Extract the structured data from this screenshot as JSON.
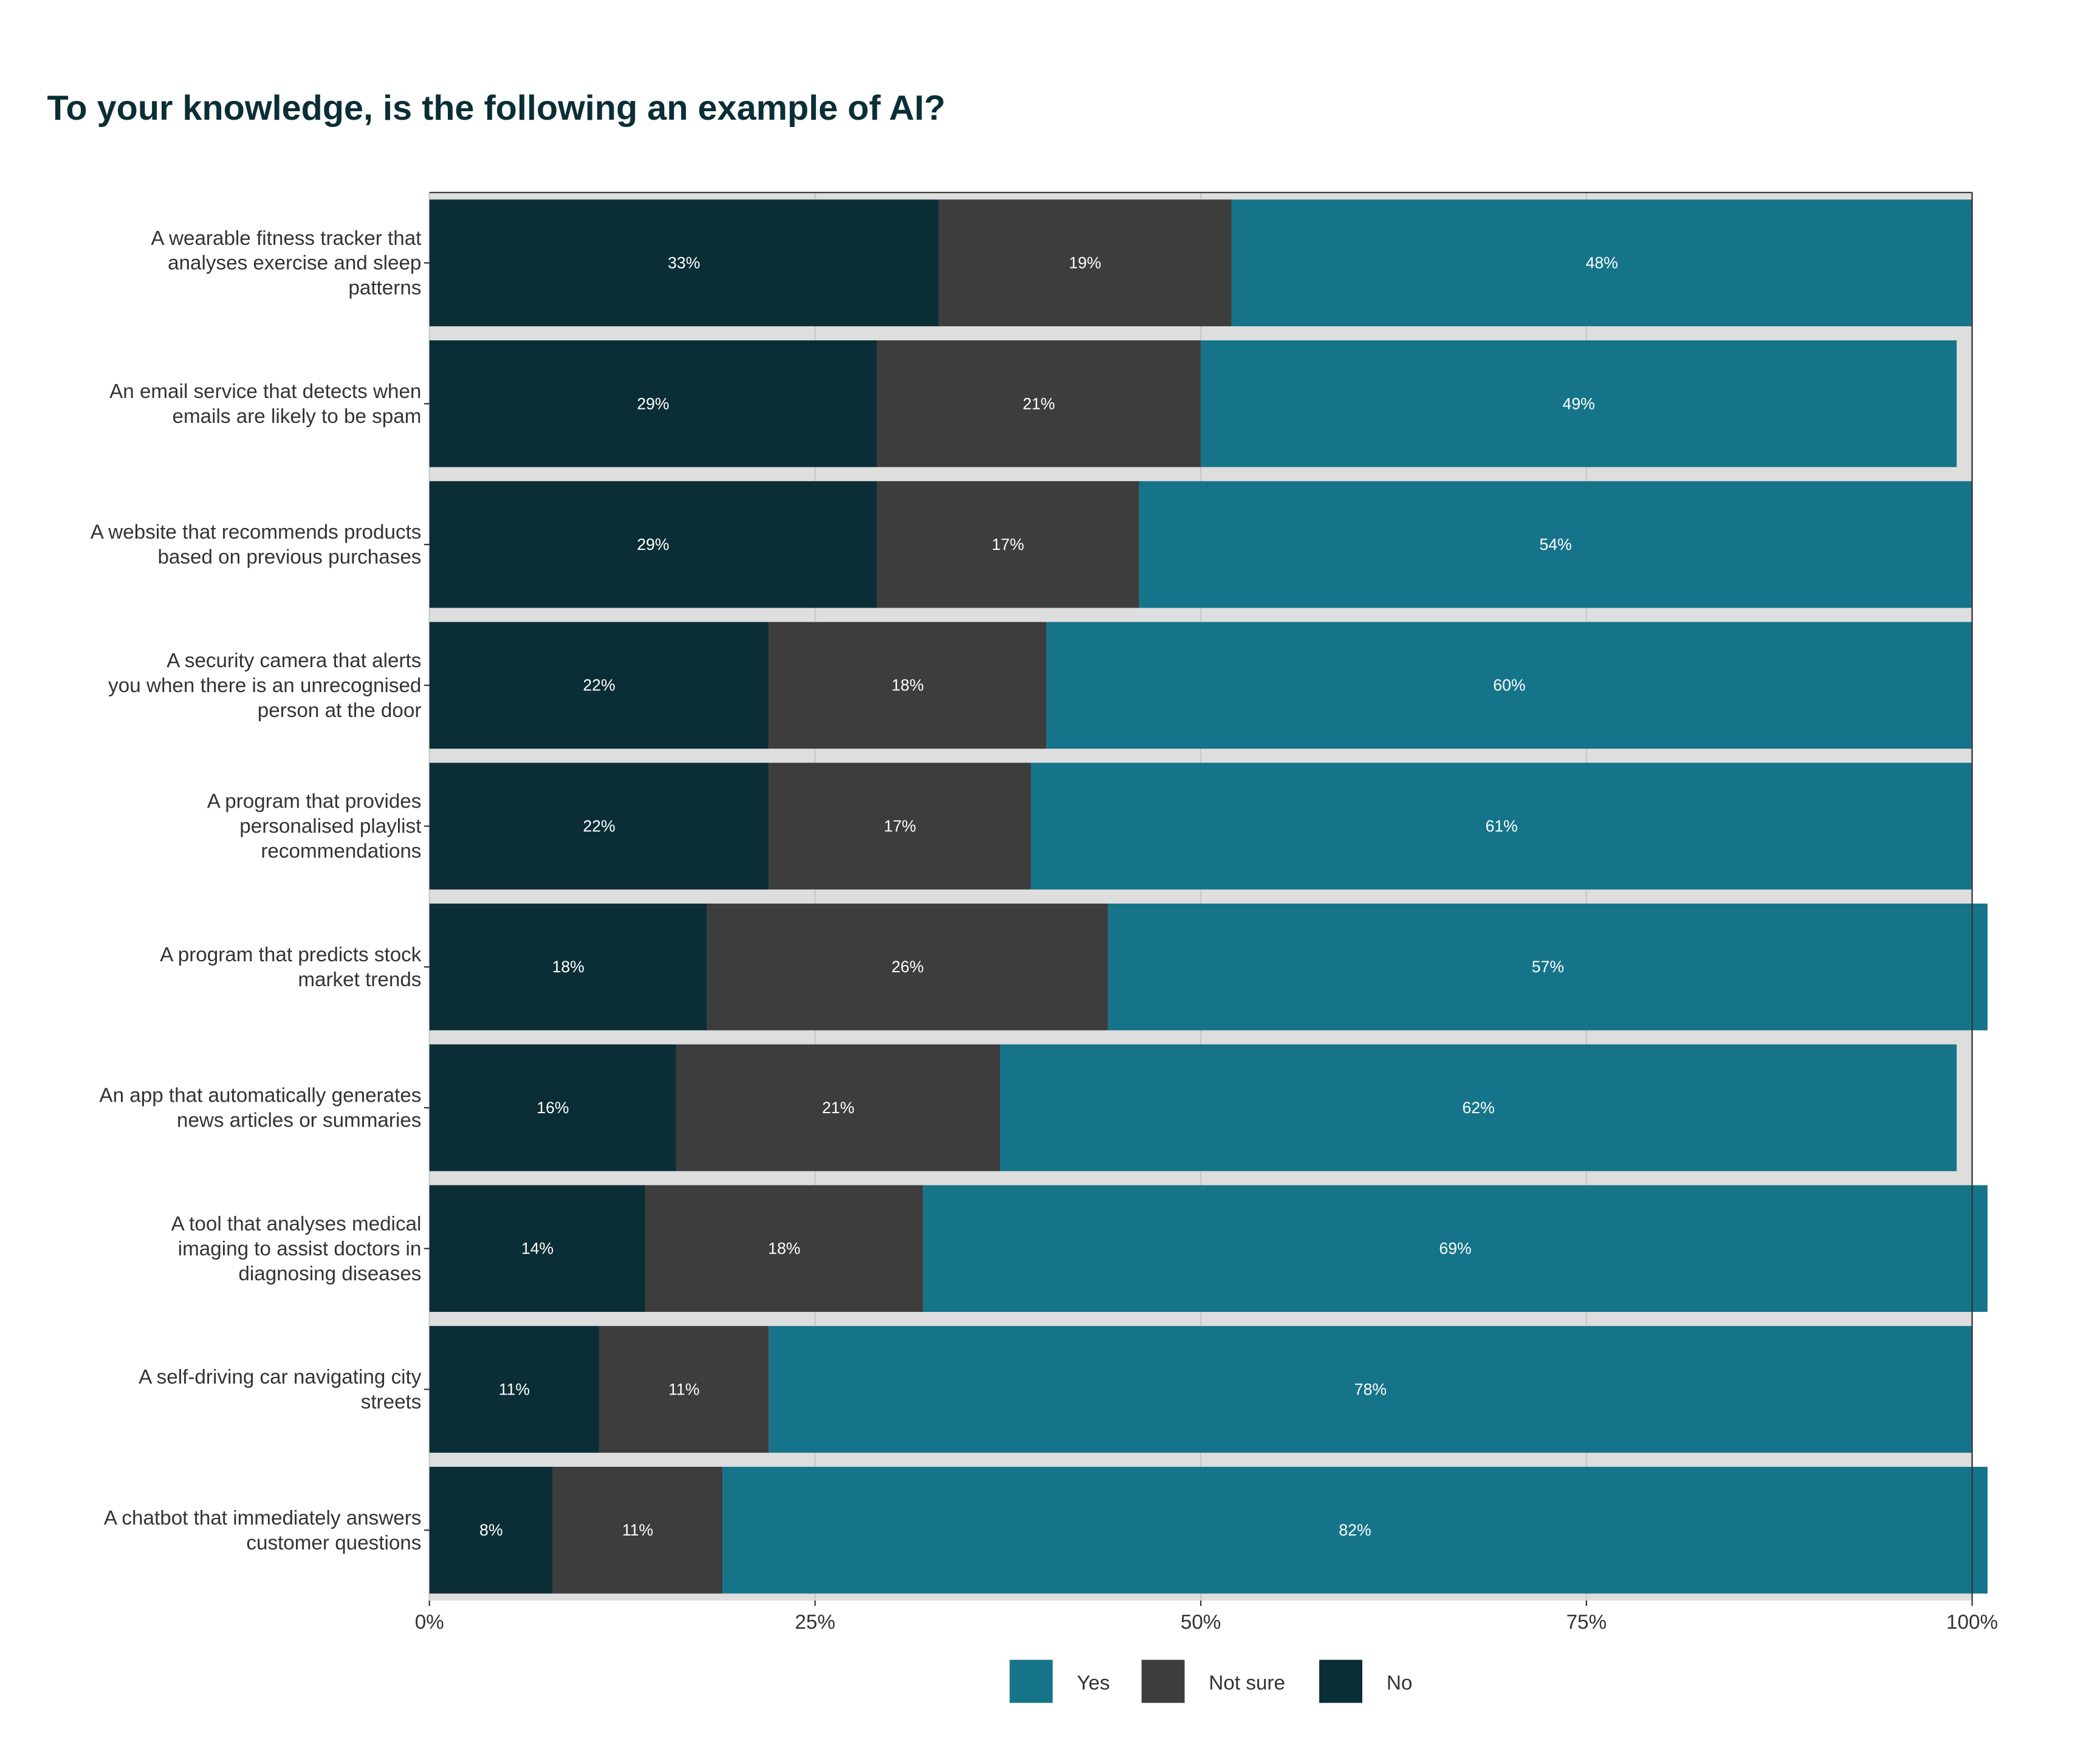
{
  "chart_data": {
    "type": "bar",
    "orientation": "horizontal",
    "stacked": true,
    "title": "To your knowledge, is the following an example of AI?",
    "xlabel": "",
    "ylabel": "",
    "xlim": [
      0,
      100
    ],
    "x_ticks": [
      "0%",
      "25%",
      "50%",
      "75%",
      "100%"
    ],
    "x_tick_values": [
      0,
      25,
      50,
      75,
      100
    ],
    "legend_position": "bottom",
    "categories": [
      [
        "A wearable fitness tracker that",
        "analyses exercise and sleep",
        "patterns"
      ],
      [
        "An email service that detects when",
        "emails are likely to be spam"
      ],
      [
        "A website that recommends products",
        "based on previous purchases"
      ],
      [
        "A security camera that alerts",
        "you when there is an unrecognised",
        "person at the door"
      ],
      [
        "A program that provides",
        "personalised playlist",
        "recommendations"
      ],
      [
        "A program that predicts stock",
        "market trends"
      ],
      [
        "An app that automatically generates",
        "news articles or summaries"
      ],
      [
        "A tool that analyses medical",
        "imaging to assist doctors in",
        "diagnosing diseases"
      ],
      [
        "A self-driving car navigating city",
        "streets"
      ],
      [
        "A chatbot that immediately answers",
        "customer questions"
      ]
    ],
    "series": [
      {
        "name": "No",
        "color": "#0b2e36",
        "values": [
          33,
          29,
          29,
          22,
          22,
          18,
          16,
          14,
          11,
          8
        ]
      },
      {
        "name": "Not sure",
        "color": "#3d3d3d",
        "values": [
          19,
          21,
          17,
          18,
          17,
          26,
          21,
          18,
          11,
          11
        ]
      },
      {
        "name": "Yes",
        "color": "#16748a",
        "values": [
          48,
          49,
          54,
          60,
          61,
          57,
          62,
          69,
          78,
          82
        ]
      }
    ],
    "legend": [
      "Yes",
      "Not sure",
      "No"
    ]
  }
}
